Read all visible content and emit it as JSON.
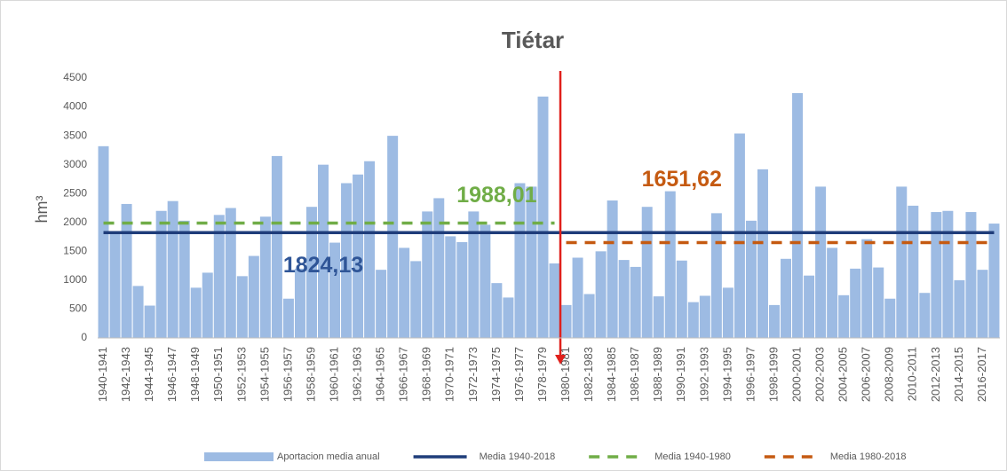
{
  "chart_data": {
    "type": "bar",
    "title": "Tiétar",
    "y_label": "hm³",
    "categories": [
      "1940-1941",
      null,
      "1942-1943",
      null,
      "1944-1945",
      null,
      "1946-1947",
      null,
      "1948-1949",
      null,
      "1950-1951",
      null,
      "1952-1953",
      null,
      "1954-1955",
      null,
      "1956-1957",
      null,
      "1958-1959",
      null,
      "1960-1961",
      null,
      "1962-1963",
      null,
      "1964-1965",
      null,
      "1966-1967",
      null,
      "1968-1969",
      null,
      "1970-1971",
      null,
      "1972-1973",
      null,
      "1974-1975",
      null,
      "1976-1977",
      null,
      "1978-1979",
      null,
      "1980-1981",
      null,
      "1982-1983",
      null,
      "1984-1985",
      null,
      "1986-1987",
      null,
      "1988-1989",
      null,
      "1990-1991",
      null,
      "1992-1993",
      null,
      "1994-1995",
      null,
      "1996-1997",
      null,
      "1998-1999",
      null,
      "2000-2001",
      null,
      "2002-2003",
      null,
      "2004-2005",
      null,
      "2006-2007",
      null,
      "2008-2009",
      null,
      "2010-2011",
      null,
      "2012-2013",
      null,
      "2014-2015",
      null,
      "2016-2017",
      null
    ],
    "series": [
      {
        "name": "Aportacion media anual",
        "type": "bar",
        "color": "#9dbbe3",
        "values": [
          3320,
          1800,
          2320,
          900,
          560,
          2200,
          2370,
          2030,
          870,
          1130,
          2130,
          2250,
          1070,
          1420,
          2100,
          3150,
          680,
          1200,
          2270,
          3000,
          1650,
          2680,
          2830,
          3060,
          1180,
          3500,
          1560,
          1330,
          2190,
          2420,
          1760,
          1660,
          2190,
          1960,
          950,
          700,
          2680,
          2620,
          4180,
          1290,
          570,
          1390,
          760,
          1500,
          2380,
          1350,
          1230,
          2270,
          720,
          2540,
          1340,
          620,
          730,
          2160,
          870,
          3540,
          2030,
          2920,
          570,
          1370,
          4240,
          1080,
          2620,
          1560,
          740,
          1200,
          1710,
          1220,
          680,
          2620,
          2290,
          780,
          2180,
          2200,
          1000,
          2180,
          1180,
          1980
        ]
      },
      {
        "name": "Media 1940-2018",
        "type": "line",
        "color": "#1f3d7a",
        "dashed": false,
        "values": [
          1824.13,
          1824.13,
          1824.13,
          1824.13,
          1824.13,
          1824.13,
          1824.13,
          1824.13,
          1824.13,
          1824.13,
          1824.13,
          1824.13,
          1824.13,
          1824.13,
          1824.13,
          1824.13,
          1824.13,
          1824.13,
          1824.13,
          1824.13,
          1824.13,
          1824.13,
          1824.13,
          1824.13,
          1824.13,
          1824.13,
          1824.13,
          1824.13,
          1824.13,
          1824.13,
          1824.13,
          1824.13,
          1824.13,
          1824.13,
          1824.13,
          1824.13,
          1824.13,
          1824.13,
          1824.13,
          1824.13,
          1824.13,
          1824.13,
          1824.13,
          1824.13,
          1824.13,
          1824.13,
          1824.13,
          1824.13,
          1824.13,
          1824.13,
          1824.13,
          1824.13,
          1824.13,
          1824.13,
          1824.13,
          1824.13,
          1824.13,
          1824.13,
          1824.13,
          1824.13,
          1824.13,
          1824.13,
          1824.13,
          1824.13,
          1824.13,
          1824.13,
          1824.13,
          1824.13,
          1824.13,
          1824.13,
          1824.13,
          1824.13,
          1824.13,
          1824.13,
          1824.13,
          1824.13,
          1824.13,
          1824.13
        ],
        "value_labels": [
          null,
          null,
          null,
          null,
          null,
          null,
          null,
          null,
          null,
          null,
          null,
          null,
          null,
          null,
          null,
          null,
          null,
          null,
          null,
          "1824,13",
          null,
          null,
          null,
          null,
          null,
          null,
          null,
          null,
          null,
          null,
          null,
          null,
          null,
          null,
          null,
          null,
          null,
          null,
          null,
          null,
          null,
          null,
          null,
          null,
          null,
          null,
          null,
          null,
          null,
          null,
          null,
          null,
          null,
          null,
          null,
          null,
          null,
          null,
          null,
          null,
          null,
          null,
          null,
          null,
          null,
          null,
          null,
          null,
          null,
          null,
          null,
          null,
          null,
          null,
          null,
          null,
          null,
          null
        ],
        "label_color": "#2f5597"
      },
      {
        "name": "Media 1940-1980",
        "type": "line",
        "color": "#70ad47",
        "dashed": true,
        "values": [
          1988.01,
          1988.01,
          1988.01,
          1988.01,
          1988.01,
          1988.01,
          1988.01,
          1988.01,
          1988.01,
          1988.01,
          1988.01,
          1988.01,
          1988.01,
          1988.01,
          1988.01,
          1988.01,
          1988.01,
          1988.01,
          1988.01,
          1988.01,
          1988.01,
          1988.01,
          1988.01,
          1988.01,
          1988.01,
          1988.01,
          1988.01,
          1988.01,
          1988.01,
          1988.01,
          1988.01,
          1988.01,
          1988.01,
          1988.01,
          1988.01,
          1988.01,
          1988.01,
          1988.01,
          1988.01,
          1988.01,
          null,
          null,
          null,
          null,
          null,
          null,
          null,
          null,
          null,
          null,
          null,
          null,
          null,
          null,
          null,
          null,
          null,
          null,
          null,
          null,
          null,
          null,
          null,
          null,
          null,
          null,
          null,
          null,
          null,
          null,
          null,
          null,
          null,
          null,
          null,
          null,
          null,
          null
        ],
        "value_labels": [
          null,
          null,
          null,
          null,
          null,
          null,
          null,
          null,
          null,
          null,
          null,
          null,
          null,
          null,
          null,
          null,
          null,
          null,
          null,
          null,
          null,
          null,
          null,
          null,
          null,
          null,
          null,
          null,
          null,
          null,
          null,
          null,
          null,
          null,
          "1988,01",
          null,
          null,
          null,
          null,
          null,
          null,
          null,
          null,
          null,
          null,
          null,
          null,
          null,
          null,
          null,
          null,
          null,
          null,
          null,
          null,
          null,
          null,
          null,
          null,
          null,
          null,
          null,
          null,
          null,
          null,
          null,
          null,
          null,
          null,
          null,
          null,
          null,
          null,
          null,
          null,
          null,
          null,
          null
        ],
        "label_color": "#70ad47"
      },
      {
        "name": "Media 1980-2018",
        "type": "line",
        "color": "#c55a11",
        "dashed": true,
        "values": [
          null,
          null,
          null,
          null,
          null,
          null,
          null,
          null,
          null,
          null,
          null,
          null,
          null,
          null,
          null,
          null,
          null,
          null,
          null,
          null,
          null,
          null,
          null,
          null,
          null,
          null,
          null,
          null,
          null,
          null,
          null,
          null,
          null,
          null,
          null,
          null,
          null,
          null,
          null,
          null,
          1651.62,
          1651.62,
          1651.62,
          1651.62,
          1651.62,
          1651.62,
          1651.62,
          1651.62,
          1651.62,
          1651.62,
          1651.62,
          1651.62,
          1651.62,
          1651.62,
          1651.62,
          1651.62,
          1651.62,
          1651.62,
          1651.62,
          1651.62,
          1651.62,
          1651.62,
          1651.62,
          1651.62,
          1651.62,
          1651.62,
          1651.62,
          1651.62,
          1651.62,
          1651.62,
          1651.62,
          1651.62,
          1651.62,
          1651.62,
          1651.62,
          1651.62,
          1651.62,
          1651.62
        ],
        "value_labels": [
          null,
          null,
          null,
          null,
          null,
          null,
          null,
          null,
          null,
          null,
          null,
          null,
          null,
          null,
          null,
          null,
          null,
          null,
          null,
          null,
          null,
          null,
          null,
          null,
          null,
          null,
          null,
          null,
          null,
          null,
          null,
          null,
          null,
          null,
          null,
          null,
          null,
          null,
          null,
          null,
          null,
          null,
          null,
          null,
          null,
          null,
          null,
          null,
          null,
          null,
          "1651,62",
          null,
          null,
          null,
          null,
          null,
          null,
          null,
          null,
          null,
          null,
          null,
          null,
          null,
          null,
          null,
          null,
          null,
          null,
          null,
          null,
          null,
          null,
          null,
          null,
          null,
          null,
          null
        ],
        "label_color": "#c55a11"
      }
    ],
    "ylim": [
      0,
      4500
    ],
    "yticks": [
      0,
      500,
      1000,
      1500,
      2000,
      2500,
      3000,
      3500,
      4000,
      4500
    ],
    "grid": false,
    "legend": "bottom",
    "divider_color": "#e0201b"
  }
}
